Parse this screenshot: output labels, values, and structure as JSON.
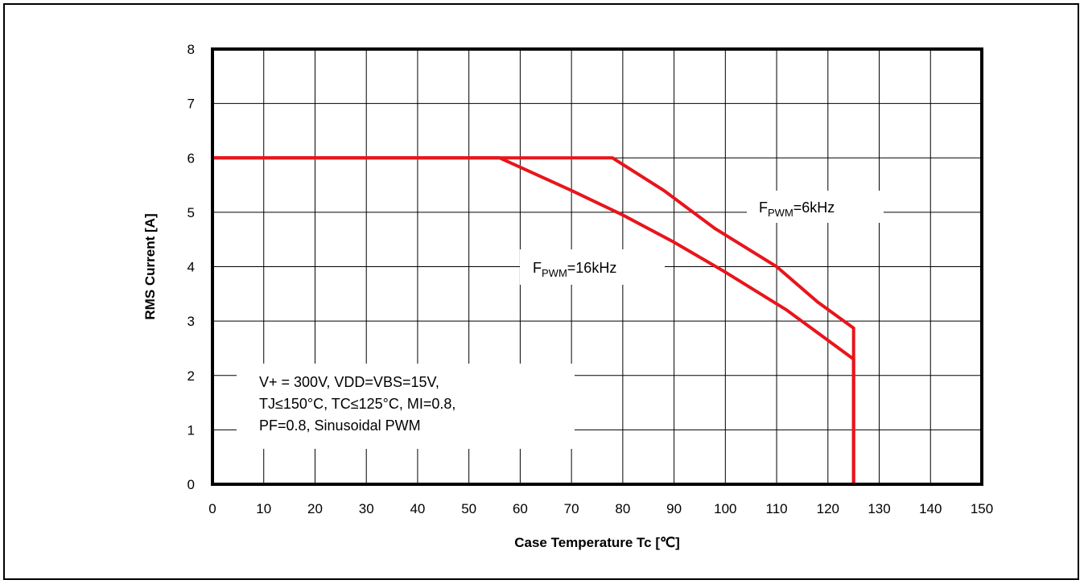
{
  "chart_data": {
    "type": "line",
    "title": "",
    "xlabel": "Case Temperature Tc [℃]",
    "ylabel": "RMS Current [A]",
    "xlim": [
      0,
      150
    ],
    "ylim": [
      0,
      8
    ],
    "xticks": [
      0,
      10,
      20,
      30,
      40,
      50,
      60,
      70,
      80,
      90,
      100,
      110,
      120,
      130,
      140,
      150
    ],
    "yticks": [
      0,
      1,
      2,
      3,
      4,
      5,
      6,
      7,
      8
    ],
    "grid": true,
    "line_color": "#e8151b",
    "series": [
      {
        "name": "F_PWM=6kHz",
        "label_main": "F",
        "label_sub": "PWM",
        "label_rest": "=6kHz",
        "x": [
          0,
          78,
          88,
          98,
          110,
          118,
          125,
          125
        ],
        "y": [
          6,
          6,
          5.4,
          4.7,
          4.0,
          3.35,
          2.87,
          0
        ]
      },
      {
        "name": "F_PWM=16kHz",
        "label_main": "F",
        "label_sub": "PWM",
        "label_rest": "=16kHz",
        "x": [
          0,
          56,
          70,
          80,
          90,
          100,
          112,
          125,
          125
        ],
        "y": [
          6,
          6,
          5.4,
          4.95,
          4.45,
          3.9,
          3.2,
          2.3,
          0
        ]
      }
    ],
    "annotation": [
      "V+ = 300V, VDD=VBS=15V,",
      "TJ≤150°C, TC≤125°C, MI=0.8,",
      "PF=0.8, Sinusoidal PWM"
    ]
  }
}
